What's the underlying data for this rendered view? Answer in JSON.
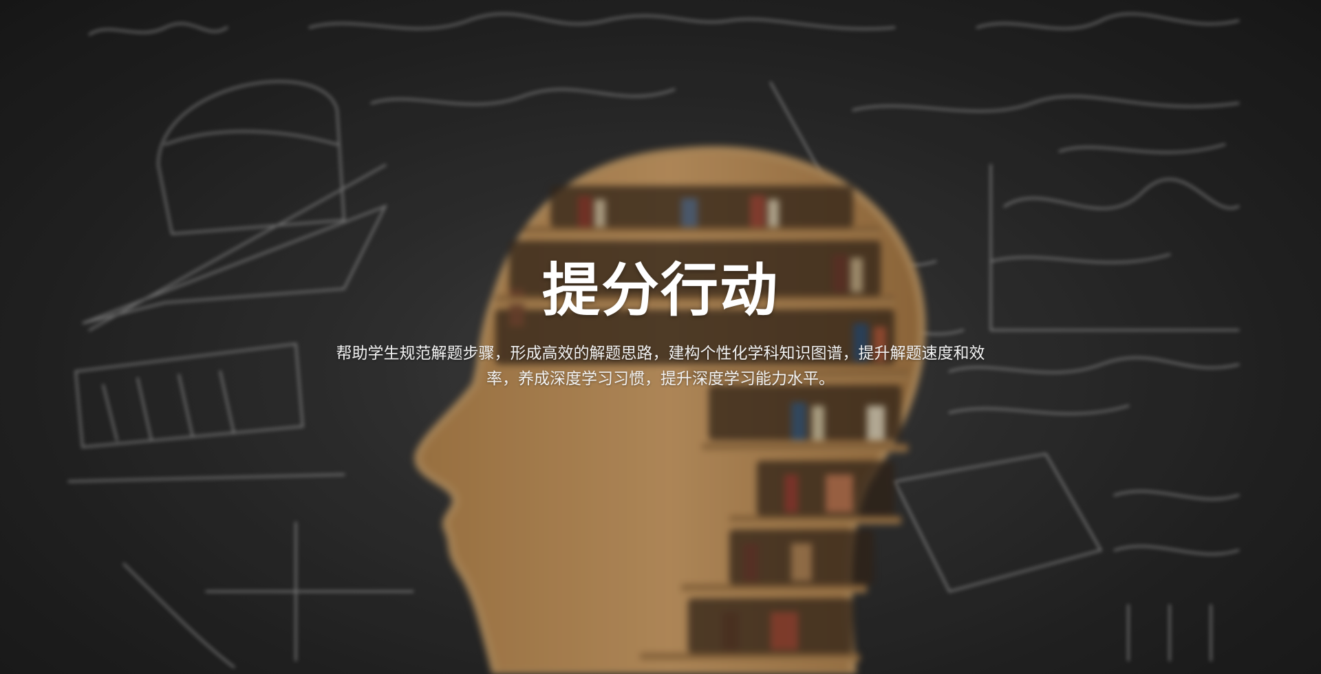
{
  "hero": {
    "title": "提分行动",
    "description": "帮助学生规范解题步骤，形成高效的解题思路，建构个性化学科知识图谱，提升解题速度和效率，养成深度学习习惯，提升深度学习能力水平。",
    "background_image": "chalkboard-head-bookshelf",
    "colors": {
      "title": "#ffffff",
      "text": "#f2f2f2",
      "wood": "#c89a5e",
      "board": "#333333"
    }
  }
}
